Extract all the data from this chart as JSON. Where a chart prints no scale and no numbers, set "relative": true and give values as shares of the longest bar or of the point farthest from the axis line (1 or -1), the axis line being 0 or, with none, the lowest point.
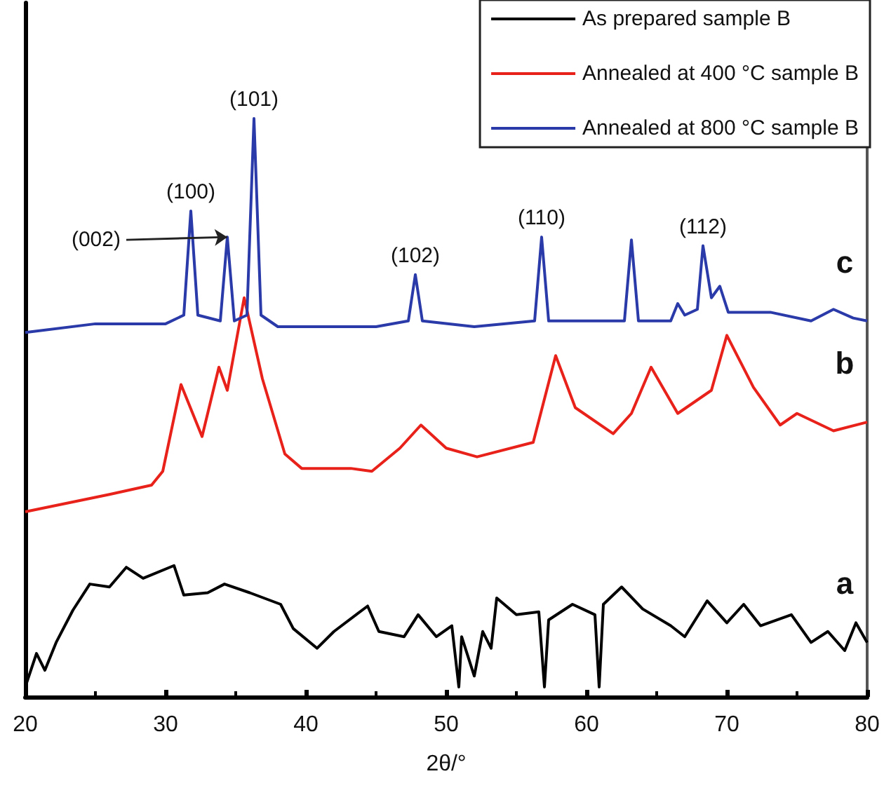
{
  "chart_data": {
    "type": "line",
    "relative": true,
    "xlabel": "2θ/°",
    "xlim": [
      20,
      80
    ],
    "xticks": [
      20,
      30,
      40,
      50,
      60,
      70,
      80
    ],
    "grid": false,
    "legend": "top right",
    "marker": "none",
    "line_style": "solid",
    "series": [
      {
        "name": "As prepared sample B",
        "color": "#000000",
        "x": [
          20,
          20.8,
          21.4,
          22.2,
          23.4,
          24.6,
          26,
          27.2,
          28.4,
          30.6,
          31.3,
          33,
          34.2,
          36,
          38.2,
          39.1,
          40.8,
          42,
          44.4,
          45.2,
          47,
          48,
          49.3,
          50.4,
          50.9,
          51.1,
          52,
          52.6,
          53.2,
          53.6,
          55,
          56.6,
          57,
          57.3,
          59,
          60.6,
          60.9,
          61.2,
          62.5,
          64,
          66,
          67,
          68.6,
          70,
          71.2,
          72.4,
          74.6,
          76,
          77.2,
          78.4,
          79.2,
          80
        ],
        "values": [
          0.017,
          0.075,
          0.046,
          0.094,
          0.15,
          0.195,
          0.19,
          0.224,
          0.205,
          0.227,
          0.176,
          0.18,
          0.195,
          0.18,
          0.16,
          0.118,
          0.084,
          0.113,
          0.157,
          0.113,
          0.104,
          0.142,
          0.104,
          0.123,
          0.017,
          0.104,
          0.036,
          0.113,
          0.084,
          0.171,
          0.142,
          0.147,
          0.017,
          0.133,
          0.16,
          0.142,
          0.017,
          0.16,
          0.19,
          0.152,
          0.123,
          0.104,
          0.166,
          0.128,
          0.16,
          0.123,
          0.142,
          0.094,
          0.113,
          0.08,
          0.128,
          0.094
        ]
      },
      {
        "name": "Annealed at 400 °C sample B",
        "color": "#e8221a",
        "x": [
          20,
          26,
          29,
          29.8,
          31.1,
          32.6,
          33.8,
          34.4,
          35.6,
          36.9,
          38.5,
          39.7,
          43.2,
          44.7,
          46.7,
          48.2,
          50,
          52.2,
          56.2,
          57.8,
          59.2,
          61.9,
          63.2,
          64.6,
          66.5,
          68.9,
          70,
          71.9,
          73.8,
          75,
          77.6,
          80
        ],
        "values": [
          0.32,
          0.35,
          0.366,
          0.39,
          0.54,
          0.45,
          0.57,
          0.53,
          0.69,
          0.55,
          0.42,
          0.395,
          0.395,
          0.39,
          0.43,
          0.47,
          0.43,
          0.415,
          0.44,
          0.59,
          0.5,
          0.455,
          0.49,
          0.57,
          0.49,
          0.53,
          0.625,
          0.535,
          0.47,
          0.49,
          0.46,
          0.475
        ]
      },
      {
        "name": "Annealed at 800 °C sample B",
        "color": "#2a3aa8",
        "x": [
          20,
          25,
          30,
          31.3,
          31.8,
          32.3,
          33.9,
          34.4,
          34.9,
          35.8,
          36.3,
          36.8,
          38,
          45,
          47.3,
          47.8,
          48.3,
          52,
          56.3,
          56.8,
          57.3,
          62.7,
          63.2,
          63.7,
          66,
          66.5,
          67,
          67.9,
          68.3,
          68.9,
          69.5,
          70.1,
          73.1,
          76,
          77.6,
          79,
          80
        ],
        "values": [
          0.63,
          0.645,
          0.645,
          0.66,
          0.84,
          0.66,
          0.65,
          0.795,
          0.65,
          0.66,
          1.0,
          0.66,
          0.64,
          0.64,
          0.65,
          0.73,
          0.65,
          0.64,
          0.65,
          0.795,
          0.65,
          0.65,
          0.79,
          0.65,
          0.65,
          0.68,
          0.66,
          0.67,
          0.78,
          0.69,
          0.71,
          0.665,
          0.665,
          0.65,
          0.67,
          0.655,
          0.65
        ]
      }
    ],
    "annotations": [
      {
        "text": "(100)",
        "x": 31.8,
        "y": 0.84
      },
      {
        "text": "(002)",
        "x": 34.4,
        "y": 0.795
      },
      {
        "text": "(101)",
        "x": 36.3,
        "y": 1.0
      },
      {
        "text": "(102)",
        "x": 47.8,
        "y": 0.73
      },
      {
        "text": "(110)",
        "x": 56.8,
        "y": 0.795
      },
      {
        "text": "(112)",
        "x": 68.3,
        "y": 0.78
      },
      "c",
      "b",
      "a"
    ]
  }
}
